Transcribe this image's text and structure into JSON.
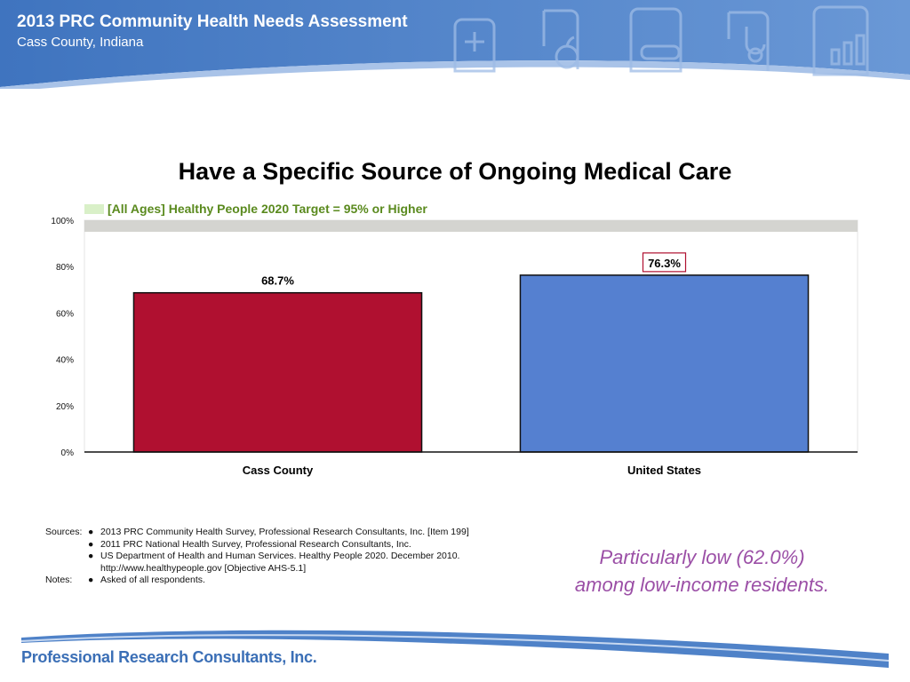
{
  "header": {
    "title": "2013 PRC Community Health Needs Assessment",
    "subtitle": "Cass County, Indiana",
    "icon_names": [
      "medical-kit-icon",
      "apple-icon",
      "bandage-icon",
      "stethoscope-icon",
      "bar-chart-icon"
    ]
  },
  "colors": {
    "header_blue": "#4f82c8",
    "cass_bar": "#b01030",
    "us_bar": "#5580d0",
    "target_band": "#d4d4d0",
    "target_text": "#5a8a1e",
    "target_swatch": "#d9f0c8",
    "callout": "#9b4fa6",
    "logo_blue": "#3b6fb6"
  },
  "chart_data": {
    "type": "bar",
    "title": "Have a Specific Source of Ongoing Medical Care",
    "categories": [
      "Cass County",
      "United States"
    ],
    "values": [
      68.7,
      76.3
    ],
    "value_labels": [
      "68.7%",
      "76.3%"
    ],
    "highlighted_label_index": 1,
    "ylim": [
      0,
      100
    ],
    "yticks": [
      0,
      20,
      40,
      60,
      80,
      100
    ],
    "ytick_labels": [
      "0%",
      "20%",
      "40%",
      "60%",
      "80%",
      "100%"
    ],
    "target": {
      "label": "[All Ages] Healthy People 2020 Target = 95% or Higher",
      "min": 95,
      "max": 100
    },
    "xlabel": "",
    "ylabel": "",
    "grid": false
  },
  "sources": {
    "label": "Sources:",
    "items": [
      "2013 PRC Community Health Survey,  Professional Research Consultants, Inc.  [Item 199]",
      "2011 PRC National Health Survey, Professional Research Consultants, Inc.",
      "US Department of Health and Human Services.  Healthy People 2020.  December 2010.",
      "http://www.healthypeople.gov  [Objective AHS-5.1]"
    ]
  },
  "notes": {
    "label": "Notes:",
    "items": [
      "Asked of all respondents."
    ]
  },
  "callout": {
    "line1": "Particularly low (62.0%)",
    "line2": "among low-income residents."
  },
  "footer": {
    "logo_text": "Professional Research Consultants, Inc."
  }
}
